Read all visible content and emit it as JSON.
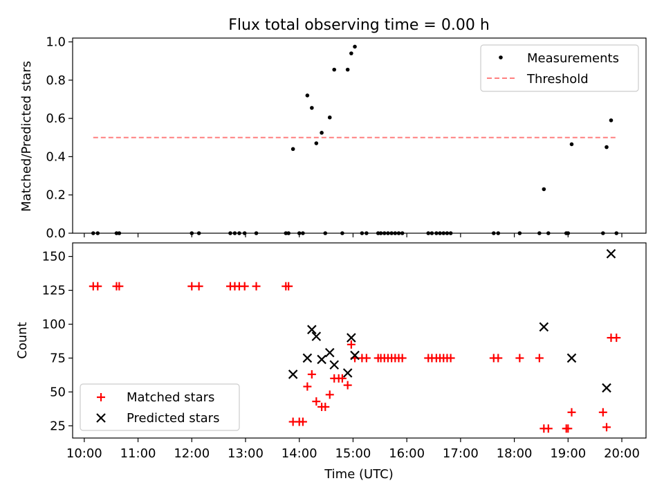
{
  "figure": {
    "title": "Flux total observing time = 0.00 h",
    "xlabel": "Time (UTC)"
  },
  "colors": {
    "measurement": "#000000",
    "threshold": "#ff7f7f",
    "matched": "#ff0000",
    "predicted": "#000000"
  },
  "chart_data": [
    {
      "type": "scatter",
      "ylabel": "Matched/Predicted stars",
      "xlim": [
        "09:47",
        "20:27"
      ],
      "ylim": [
        0,
        1.02
      ],
      "yticks": [
        "0.0",
        "0.2",
        "0.4",
        "0.6",
        "0.8",
        "1.0"
      ],
      "ytick_values": [
        0,
        0.2,
        0.4,
        0.6,
        0.8,
        1.0
      ],
      "grid": false,
      "legend": {
        "placement": "upper right",
        "entries": [
          "Measurements",
          "Threshold"
        ]
      },
      "series": [
        {
          "name": "Measurements",
          "marker": "dot",
          "points": [
            [
              "10:10",
              0
            ],
            [
              "10:15",
              0
            ],
            [
              "10:36",
              0
            ],
            [
              "10:39",
              0
            ],
            [
              "12:00",
              0
            ],
            [
              "12:08",
              0
            ],
            [
              "12:43",
              0
            ],
            [
              "12:48",
              0
            ],
            [
              "12:53",
              0
            ],
            [
              "12:59",
              0
            ],
            [
              "13:12",
              0
            ],
            [
              "13:45",
              0
            ],
            [
              "13:48",
              0
            ],
            [
              "13:53",
              0.44
            ],
            [
              "14:00",
              0
            ],
            [
              "14:04",
              0
            ],
            [
              "14:09",
              0.72
            ],
            [
              "14:14",
              0.655
            ],
            [
              "14:19",
              0.47
            ],
            [
              "14:25",
              0.525
            ],
            [
              "14:29",
              0
            ],
            [
              "14:34",
              0.605
            ],
            [
              "14:39",
              0.855
            ],
            [
              "14:48",
              0
            ],
            [
              "14:54",
              0.855
            ],
            [
              "14:58",
              0.94
            ],
            [
              "15:02",
              0.975
            ],
            [
              "15:10",
              0
            ],
            [
              "15:15",
              0
            ],
            [
              "15:28",
              0
            ],
            [
              "15:31",
              0
            ],
            [
              "15:35",
              0
            ],
            [
              "15:39",
              0
            ],
            [
              "15:43",
              0
            ],
            [
              "15:47",
              0
            ],
            [
              "15:51",
              0
            ],
            [
              "15:55",
              0
            ],
            [
              "16:24",
              0
            ],
            [
              "16:28",
              0
            ],
            [
              "16:33",
              0
            ],
            [
              "16:37",
              0
            ],
            [
              "16:41",
              0
            ],
            [
              "16:45",
              0
            ],
            [
              "16:49",
              0
            ],
            [
              "17:37",
              0
            ],
            [
              "17:42",
              0
            ],
            [
              "18:06",
              0
            ],
            [
              "18:28",
              0
            ],
            [
              "18:33",
              0.23
            ],
            [
              "18:38",
              0
            ],
            [
              "18:58",
              0
            ],
            [
              "19:00",
              0
            ],
            [
              "19:04",
              0.465
            ],
            [
              "19:39",
              0
            ],
            [
              "19:43",
              0.45
            ],
            [
              "19:48",
              0.59
            ],
            [
              "19:54",
              0
            ]
          ]
        },
        {
          "name": "Threshold",
          "style": "dashed",
          "x": [
            "10:10",
            "19:54"
          ],
          "y": [
            0.5,
            0.5
          ]
        }
      ]
    },
    {
      "type": "scatter",
      "ylabel": "Count",
      "xlim": [
        "09:47",
        "20:27"
      ],
      "ylim": [
        16,
        160
      ],
      "yticks": [
        "25",
        "50",
        "75",
        "100",
        "125",
        "150"
      ],
      "ytick_values": [
        25,
        50,
        75,
        100,
        125,
        150
      ],
      "xticks": [
        "10:00",
        "11:00",
        "12:00",
        "13:00",
        "14:00",
        "15:00",
        "16:00",
        "17:00",
        "18:00",
        "19:00",
        "20:00"
      ],
      "grid": false,
      "legend": {
        "placement": "lower left",
        "entries": [
          "Matched stars",
          "Predicted stars"
        ]
      },
      "series": [
        {
          "name": "Matched stars",
          "marker": "plus",
          "points": [
            [
              "10:10",
              128
            ],
            [
              "10:15",
              128
            ],
            [
              "10:36",
              128
            ],
            [
              "10:39",
              128
            ],
            [
              "12:00",
              128
            ],
            [
              "12:08",
              128
            ],
            [
              "12:43",
              128
            ],
            [
              "12:48",
              128
            ],
            [
              "12:53",
              128
            ],
            [
              "12:59",
              128
            ],
            [
              "13:12",
              128
            ],
            [
              "13:45",
              128
            ],
            [
              "13:48",
              128
            ],
            [
              "13:53",
              28
            ],
            [
              "14:00",
              28
            ],
            [
              "14:04",
              28
            ],
            [
              "14:09",
              54
            ],
            [
              "14:14",
              63
            ],
            [
              "14:19",
              43
            ],
            [
              "14:25",
              39
            ],
            [
              "14:29",
              39
            ],
            [
              "14:34",
              48
            ],
            [
              "14:39",
              60
            ],
            [
              "14:44",
              60
            ],
            [
              "14:48",
              60
            ],
            [
              "14:54",
              55
            ],
            [
              "14:58",
              85
            ],
            [
              "15:02",
              75
            ],
            [
              "15:10",
              75
            ],
            [
              "15:15",
              75
            ],
            [
              "15:28",
              75
            ],
            [
              "15:31",
              75
            ],
            [
              "15:35",
              75
            ],
            [
              "15:39",
              75
            ],
            [
              "15:43",
              75
            ],
            [
              "15:47",
              75
            ],
            [
              "15:51",
              75
            ],
            [
              "15:55",
              75
            ],
            [
              "16:24",
              75
            ],
            [
              "16:28",
              75
            ],
            [
              "16:33",
              75
            ],
            [
              "16:37",
              75
            ],
            [
              "16:41",
              75
            ],
            [
              "16:45",
              75
            ],
            [
              "16:49",
              75
            ],
            [
              "17:37",
              75
            ],
            [
              "17:42",
              75
            ],
            [
              "18:06",
              75
            ],
            [
              "18:28",
              75
            ],
            [
              "18:33",
              23
            ],
            [
              "18:38",
              23
            ],
            [
              "18:58",
              23
            ],
            [
              "19:00",
              23
            ],
            [
              "19:04",
              35
            ],
            [
              "19:39",
              35
            ],
            [
              "19:43",
              24
            ],
            [
              "19:48",
              90
            ],
            [
              "19:54",
              90
            ]
          ]
        },
        {
          "name": "Predicted stars",
          "marker": "x",
          "points": [
            [
              "13:53",
              63
            ],
            [
              "14:09",
              75
            ],
            [
              "14:14",
              96
            ],
            [
              "14:19",
              91
            ],
            [
              "14:25",
              74
            ],
            [
              "14:34",
              79
            ],
            [
              "14:39",
              70
            ],
            [
              "14:54",
              64
            ],
            [
              "14:58",
              90
            ],
            [
              "15:02",
              77
            ],
            [
              "18:33",
              98
            ],
            [
              "19:04",
              75
            ],
            [
              "19:43",
              53
            ],
            [
              "19:48",
              152
            ]
          ]
        }
      ]
    }
  ]
}
